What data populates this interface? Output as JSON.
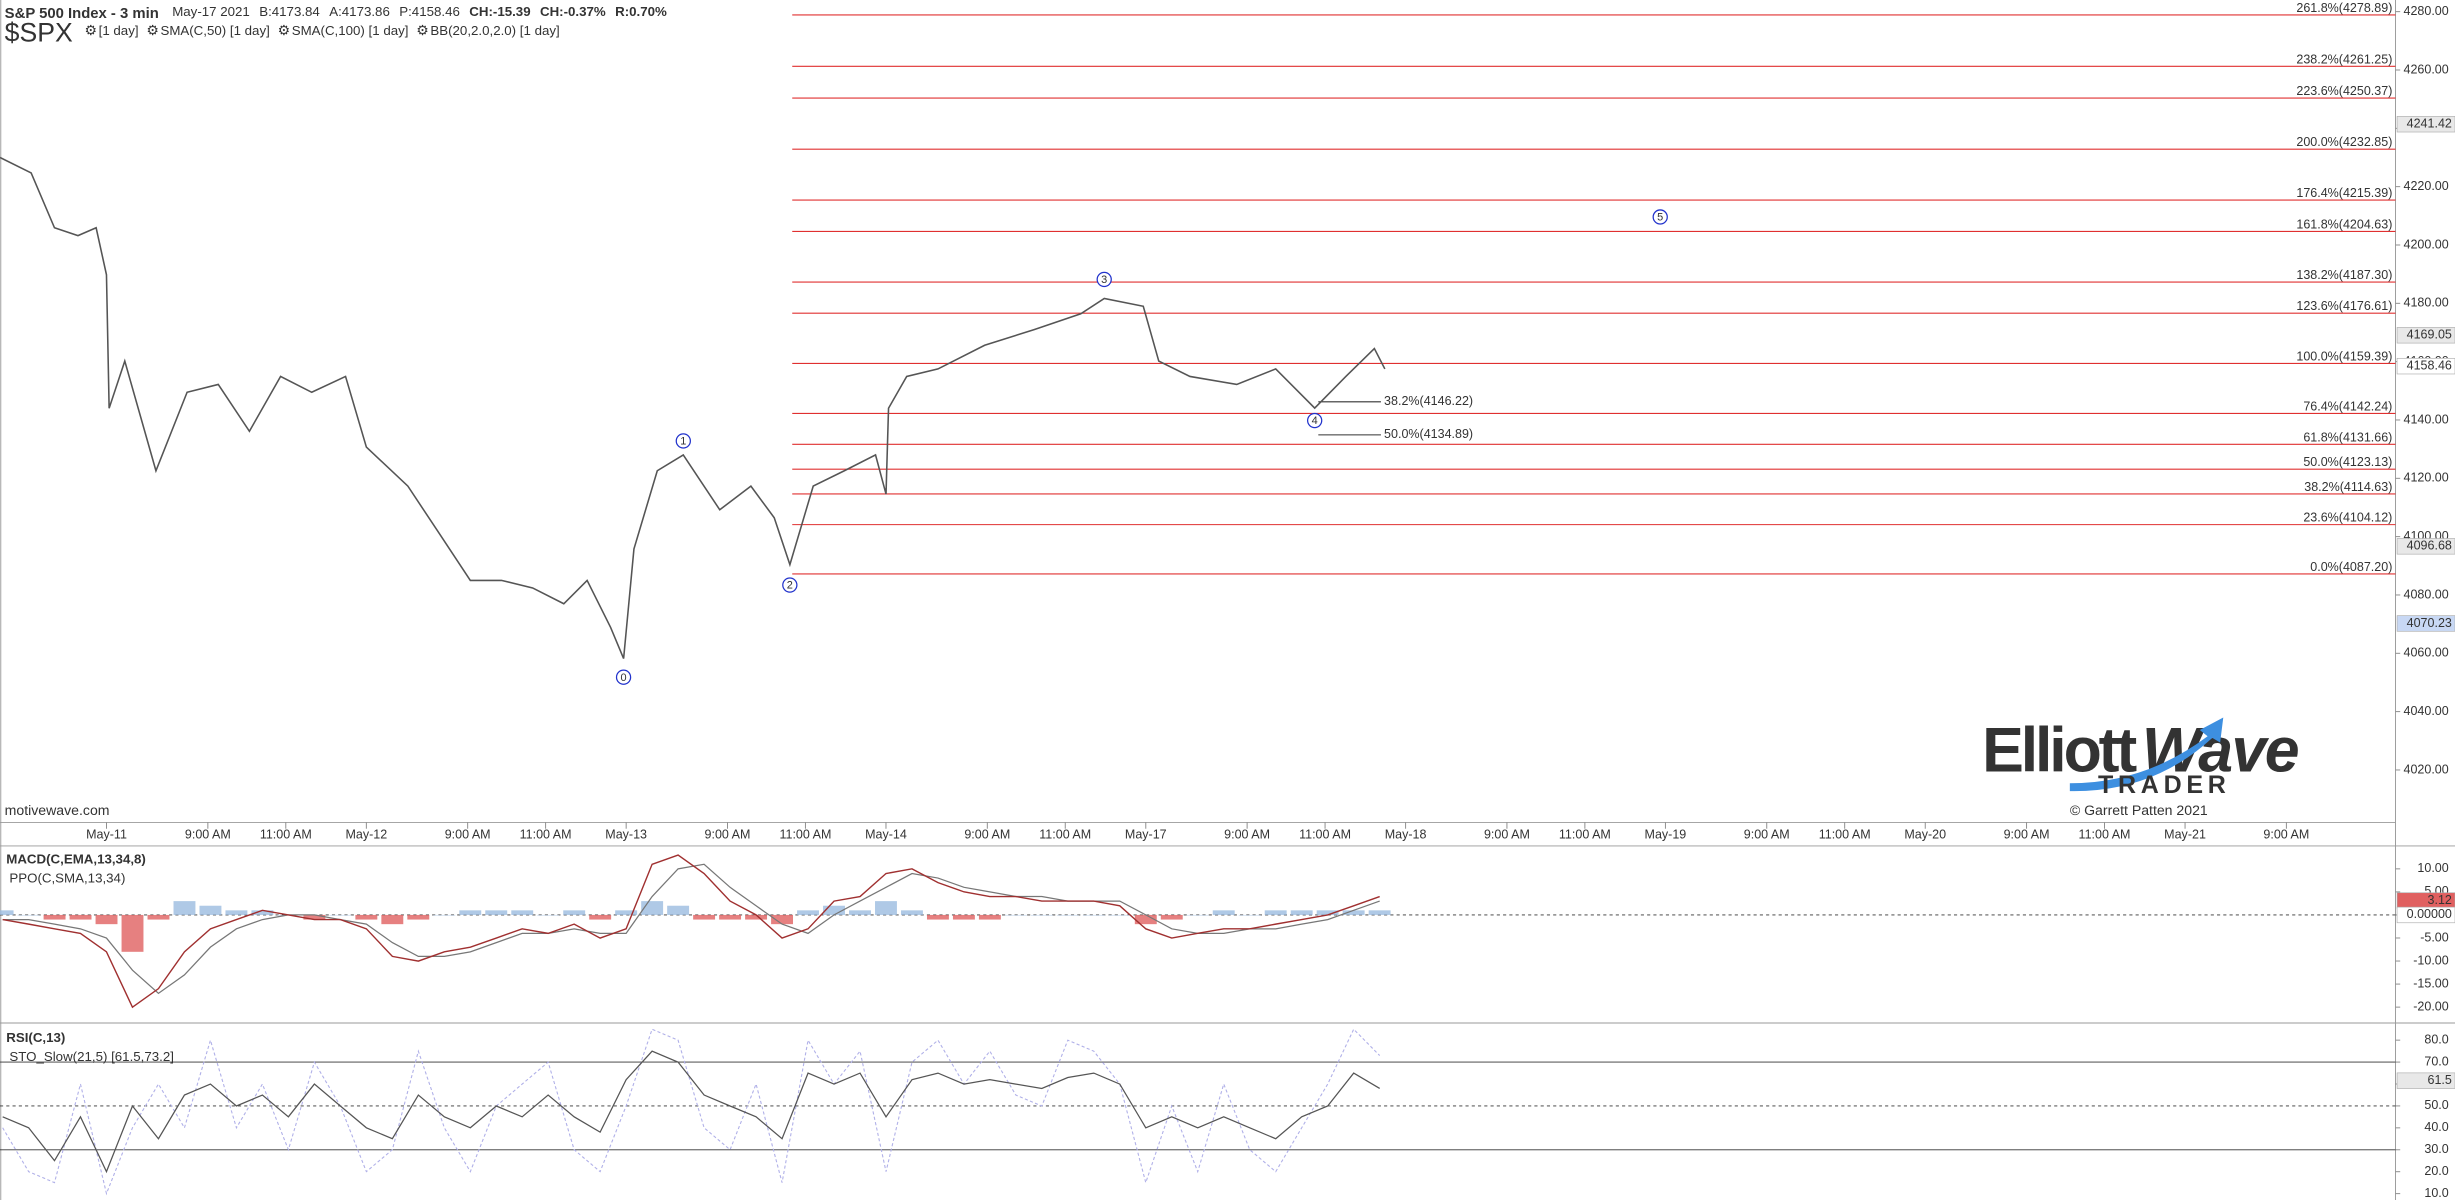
{
  "chart_data": [
    {
      "type": "line",
      "title": "S&P 500 Index - 3 min",
      "symbol": "$SPX",
      "header": [
        {
          "text": "May-17 2021",
          "color": "#666666"
        },
        {
          "text": "B:4173.84",
          "color": "#333333"
        },
        {
          "text": "A:4173.86",
          "color": "#333333"
        },
        {
          "text": "P:4158.46",
          "color": "#333333"
        },
        {
          "text": "CH:-15.39",
          "color": "#cc0000"
        },
        {
          "text": "CH:-0.37%",
          "color": "#cc0000"
        },
        {
          "text": "R:0.70%",
          "color": "#e08000"
        }
      ],
      "indicators": [
        {
          "text": "[1 day]",
          "color": "#e08080"
        },
        {
          "text": "SMA(C,50) [1 day]",
          "color": "#8fa8d8"
        },
        {
          "text": "SMA(C,100) [1 day]",
          "color": "#70b090"
        },
        {
          "text": "BB(20,2.0,2.0) [1 day]",
          "color": "#a0a0a0"
        }
      ],
      "x": [
        -4.1,
        -2.9,
        -2,
        -1.1,
        -0.4,
        0,
        0.1,
        0.7,
        1.9,
        3.1,
        4.3,
        5.5,
        6.7,
        7.9,
        9.2,
        10,
        11.6,
        12.8,
        14,
        15.2,
        16.4,
        17.6,
        18.5,
        19.4,
        19.9,
        20.3,
        21.2,
        22.2,
        23.6,
        24.8,
        25.7,
        26.3,
        27.2,
        28.4,
        29.6,
        30,
        30.1,
        30.8,
        32,
        33.8,
        35.7,
        37.5,
        38.4,
        39.9,
        40.5,
        41.7,
        43.5,
        45,
        46.5,
        47.7,
        48.8,
        49.2
      ],
      "values": [
        4230,
        4224.7,
        4205.9,
        4203.2,
        4205.9,
        4189.8,
        4144,
        4160.2,
        4122.6,
        4149.5,
        4152.2,
        4136.1,
        4154.9,
        4149.5,
        4154.9,
        4130.7,
        4117.3,
        4101.2,
        4085,
        4085,
        4082.4,
        4077,
        4085,
        4068.9,
        4058.2,
        4095.8,
        4122.6,
        4128,
        4109.2,
        4117.3,
        4106.5,
        4090.4,
        4117.3,
        4122.6,
        4128,
        4114.6,
        4144,
        4154.9,
        4157.5,
        4165.6,
        4171,
        4176.4,
        4181.7,
        4179,
        4160.2,
        4154.9,
        4152.2,
        4157.5,
        4144.1,
        4154.9,
        4164.5,
        4157.5
      ],
      "color": "#555555",
      "xlim": [
        -4.1,
        88.1
      ],
      "xticks": [
        {
          "value": 0,
          "label": "May-11"
        },
        {
          "value": 3.9,
          "label": "9:00 AM"
        },
        {
          "value": 6.9,
          "label": "11:00 AM"
        },
        {
          "value": 10,
          "label": "May-12"
        },
        {
          "value": 13.9,
          "label": "9:00 AM"
        },
        {
          "value": 16.9,
          "label": "11:00 AM"
        },
        {
          "value": 20,
          "label": "May-13"
        },
        {
          "value": 23.9,
          "label": "9:00 AM"
        },
        {
          "value": 26.9,
          "label": "11:00 AM"
        },
        {
          "value": 30,
          "label": "May-14"
        },
        {
          "value": 33.9,
          "label": "9:00 AM"
        },
        {
          "value": 36.9,
          "label": "11:00 AM"
        },
        {
          "value": 40,
          "label": "May-17"
        },
        {
          "value": 43.9,
          "label": "9:00 AM"
        },
        {
          "value": 46.9,
          "label": "11:00 AM"
        },
        {
          "value": 50,
          "label": "May-18"
        },
        {
          "value": 53.9,
          "label": "9:00 AM"
        },
        {
          "value": 56.9,
          "label": "11:00 AM"
        },
        {
          "value": 60,
          "label": "May-19"
        },
        {
          "value": 63.9,
          "label": "9:00 AM"
        },
        {
          "value": 66.9,
          "label": "11:00 AM"
        },
        {
          "value": 70,
          "label": "May-20"
        },
        {
          "value": 73.9,
          "label": "9:00 AM"
        },
        {
          "value": 76.9,
          "label": "11:00 AM"
        },
        {
          "value": 80,
          "label": "May-21"
        },
        {
          "value": 83.9,
          "label": "9:00 AM"
        }
      ],
      "ylim": [
        4002,
        4284
      ],
      "yticks": [
        {
          "value": 4020,
          "label": "4020.00"
        },
        {
          "value": 4040,
          "label": "4040.00"
        },
        {
          "value": 4060,
          "label": "4060.00"
        },
        {
          "value": 4080,
          "label": "4080.00"
        },
        {
          "value": 4100,
          "label": "4100.00"
        },
        {
          "value": 4120,
          "label": "4120.00"
        },
        {
          "value": 4140,
          "label": "4140.00"
        },
        {
          "value": 4160,
          "label": "4160.00"
        },
        {
          "value": 4180,
          "label": "4180.00"
        },
        {
          "value": 4200,
          "label": "4200.00"
        },
        {
          "value": 4220,
          "label": "4220.00"
        },
        {
          "value": 4240,
          "label": "4240.00"
        },
        {
          "value": 4260,
          "label": "4260.00"
        },
        {
          "value": 4280,
          "label": "4280.00"
        }
      ],
      "fib_color": "#e03030",
      "fib_levels": [
        {
          "value": 4278.89,
          "label": "261.8%(4278.89)"
        },
        {
          "value": 4261.25,
          "label": "238.2%(4261.25)"
        },
        {
          "value": 4250.37,
          "label": "223.6%(4250.37)"
        },
        {
          "value": 4232.85,
          "label": "200.0%(4232.85)"
        },
        {
          "value": 4215.39,
          "label": "176.4%(4215.39)"
        },
        {
          "value": 4204.63,
          "label": "161.8%(4204.63)"
        },
        {
          "value": 4187.3,
          "label": "138.2%(4187.30)"
        },
        {
          "value": 4176.61,
          "label": "123.6%(4176.61)"
        },
        {
          "value": 4159.39,
          "label": "100.0%(4159.39)"
        },
        {
          "value": 4142.24,
          "label": "76.4%(4142.24)"
        },
        {
          "value": 4131.66,
          "label": "61.8%(4131.66)"
        },
        {
          "value": 4123.13,
          "label": "50.0%(4123.13)"
        },
        {
          "value": 4114.63,
          "label": "38.2%(4114.63)"
        },
        {
          "value": 4104.12,
          "label": "23.6%(4104.12)"
        },
        {
          "value": 4087.2,
          "label": "0.0%(4087.20)"
        }
      ],
      "retrace_color": "#333333",
      "retrace_levels": [
        {
          "value": 4146.22,
          "label": "38.2%(4146.22)"
        },
        {
          "value": 4134.89,
          "label": "50.0%(4134.89)"
        }
      ],
      "wave_color": "#2233cc",
      "waves": [
        {
          "label": "0",
          "x": 19.9,
          "y": 4051.8
        },
        {
          "label": "1",
          "x": 22.2,
          "y": 4132.8
        },
        {
          "label": "2",
          "x": 26.3,
          "y": 4083.4
        },
        {
          "label": "3",
          "x": 38.4,
          "y": 4188.2
        },
        {
          "label": "4",
          "x": 46.5,
          "y": 4139.8
        },
        {
          "label": "5",
          "x": 59.8,
          "y": 4209.6
        }
      ],
      "price_markers": [
        {
          "value": 4241.42,
          "color": "#e8e8e8"
        },
        {
          "value": 4169.05,
          "color": "#e8e8e8"
        },
        {
          "value": 4158.46,
          "color": "#ffffff"
        },
        {
          "value": 4096.68,
          "color": "#e8e8e8"
        },
        {
          "value": 4070.23,
          "color": "#c8d8f4"
        }
      ],
      "watermark": "motivewave.com",
      "logo": {
        "line1": "Elliott",
        "line2": "Wave",
        "line3": "TRADER"
      },
      "copyright": "© Garrett Patten 2021"
    },
    {
      "type": "macd",
      "title": "MACD(C,EMA,13,34,8)",
      "subtitle": "PPO(C,SMA,13,34)",
      "x": [
        -4,
        -3,
        -2,
        -1,
        0,
        1,
        2,
        3,
        4,
        5,
        6,
        7,
        8,
        9,
        10,
        11,
        12,
        13,
        14,
        15,
        16,
        17,
        18,
        19,
        20,
        21,
        22,
        23,
        24,
        25,
        26,
        27,
        28,
        29,
        30,
        31,
        32,
        33,
        34,
        35,
        36,
        37,
        38,
        39,
        40,
        41,
        42,
        43,
        44,
        45,
        46,
        47,
        48,
        49
      ],
      "macd_values": [
        -1,
        -2,
        -3,
        -4,
        -8,
        -20,
        -16,
        -8,
        -3,
        -1,
        1,
        0,
        -1,
        -1,
        -3,
        -9,
        -10,
        -8,
        -7,
        -5,
        -3,
        -4,
        -2,
        -5,
        -3,
        11,
        13,
        9,
        3,
        0,
        -5,
        -3,
        3,
        4,
        9,
        10,
        7,
        5,
        4,
        4,
        3,
        3,
        3,
        2,
        -3,
        -5,
        -4,
        -3,
        -3,
        -2,
        -1,
        0,
        2,
        4
      ],
      "macd_color": "#a03030",
      "signal_values": [
        -1,
        -1,
        -2,
        -3,
        -5,
        -12,
        -17,
        -13,
        -7,
        -3,
        -1,
        0,
        0,
        -1,
        -2,
        -6,
        -9,
        -9,
        -8,
        -6,
        -4,
        -4,
        -3,
        -4,
        -4,
        4,
        10,
        11,
        6,
        2,
        -2,
        -4,
        0,
        3,
        6,
        9,
        8,
        6,
        5,
        4,
        4,
        3,
        3,
        3,
        0,
        -3,
        -4,
        -4,
        -3,
        -3,
        -2,
        -1,
        1,
        3
      ],
      "signal_color": "#777777",
      "hist_values": [
        1,
        0,
        -1,
        -1,
        -2,
        -8,
        -1,
        3,
        2,
        1,
        1,
        0,
        -1,
        0,
        -1,
        -2,
        -1,
        0,
        1,
        1,
        1,
        0,
        1,
        -1,
        1,
        3,
        2,
        -1,
        -1,
        -1,
        -2,
        1,
        2,
        1,
        3,
        1,
        -1,
        -1,
        -1,
        0,
        0,
        0,
        0,
        0,
        -2,
        -1,
        0,
        1,
        0,
        1,
        1,
        1,
        1,
        1
      ],
      "hist_up_color": "#9bbbe0",
      "hist_down_color": "#e06060",
      "ylim": [
        -23.1,
        14.97
      ],
      "yticks": [
        {
          "value": 10,
          "label": "10.00"
        },
        {
          "value": 5,
          "label": "5.00"
        },
        {
          "value": 0,
          "label": "0.00"
        },
        {
          "value": -5,
          "label": "-5.00"
        },
        {
          "value": -10,
          "label": "-10.00"
        },
        {
          "value": -15,
          "label": "-15.00"
        },
        {
          "value": -20,
          "label": "-20.00"
        }
      ],
      "markers": [
        {
          "value": 3.12,
          "color": "#e06060"
        },
        {
          "value": 0,
          "label": "0.00000",
          "color": "#ffffff"
        }
      ]
    },
    {
      "type": "rsi",
      "title": "RSI(C,13)",
      "subtitle": "STO_Slow(21,5) [61.5,73.2]",
      "x": [
        -4,
        -3,
        -2,
        -1,
        0,
        1,
        2,
        3,
        4,
        5,
        6,
        7,
        8,
        9,
        10,
        11,
        12,
        13,
        14,
        15,
        16,
        17,
        18,
        19,
        20,
        21,
        22,
        23,
        24,
        25,
        26,
        27,
        28,
        29,
        30,
        31,
        32,
        33,
        34,
        35,
        36,
        37,
        38,
        39,
        40,
        41,
        42,
        43,
        44,
        45,
        46,
        47,
        48,
        49
      ],
      "rsi_values": [
        45,
        40,
        25,
        45,
        20,
        50,
        35,
        55,
        60,
        50,
        55,
        45,
        60,
        50,
        40,
        35,
        55,
        45,
        40,
        50,
        45,
        55,
        45,
        38,
        62,
        75,
        70,
        55,
        50,
        45,
        35,
        65,
        60,
        65,
        45,
        62,
        65,
        60,
        62,
        60,
        58,
        63,
        65,
        60,
        40,
        45,
        40,
        45,
        40,
        35,
        45,
        50,
        65,
        58
      ],
      "rsi_color": "#555555",
      "sto_values": [
        40,
        20,
        15,
        60,
        10,
        40,
        60,
        40,
        80,
        40,
        60,
        30,
        70,
        50,
        20,
        30,
        75,
        40,
        20,
        50,
        60,
        70,
        30,
        20,
        50,
        85,
        80,
        40,
        30,
        60,
        15,
        80,
        60,
        75,
        20,
        70,
        80,
        60,
        75,
        55,
        50,
        80,
        75,
        60,
        15,
        50,
        20,
        60,
        30,
        20,
        40,
        60,
        85,
        73
      ],
      "sto_color": "#b0b0e8",
      "levels": [
        70,
        50,
        30
      ],
      "ylim": [
        7.1,
        86.4
      ],
      "yticks": [
        {
          "value": 80,
          "label": "80.0"
        },
        {
          "value": 70,
          "label": "70.0"
        },
        {
          "value": 60,
          "label": "60.0"
        },
        {
          "value": 50,
          "label": "50.0"
        },
        {
          "value": 40,
          "label": "40.0"
        },
        {
          "value": 30,
          "label": "30.0"
        },
        {
          "value": 20,
          "label": "20.0"
        },
        {
          "value": 10,
          "label": "10.0"
        }
      ],
      "markers": [
        {
          "value": 61.5,
          "color": "#e8e8e8"
        }
      ]
    }
  ]
}
